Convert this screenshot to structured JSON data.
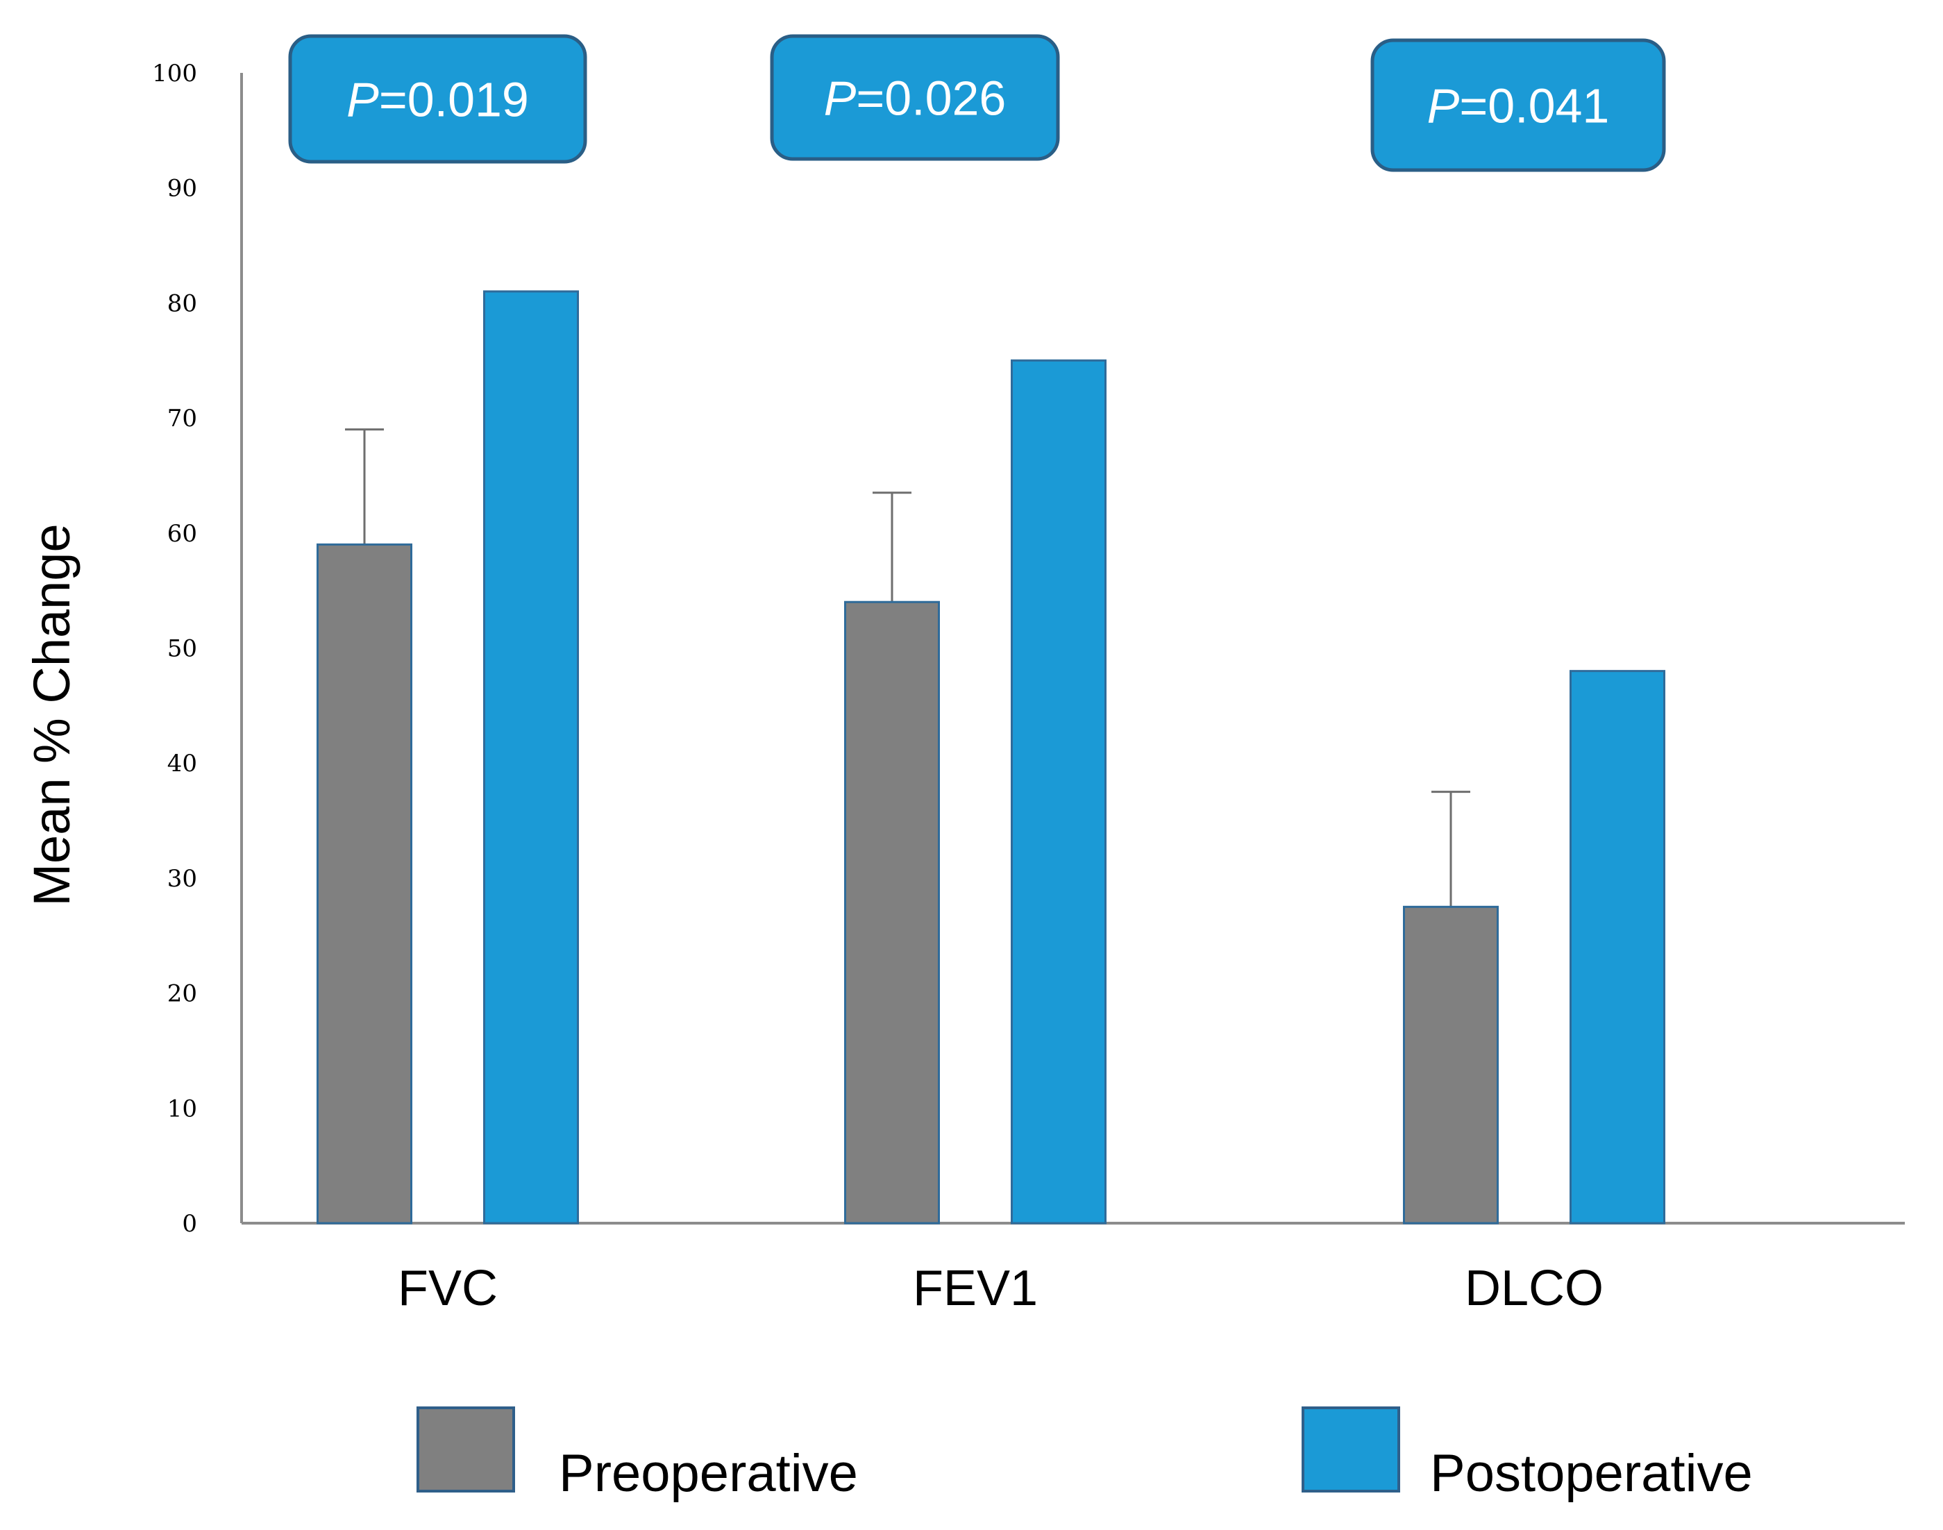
{
  "chart_data": {
    "type": "bar",
    "title": "",
    "xlabel": "",
    "ylabel": "Mean % Change",
    "ylim": [
      0,
      100
    ],
    "yticks": [
      0,
      10,
      20,
      30,
      40,
      50,
      60,
      70,
      80,
      90,
      100
    ],
    "ytick_labels": [
      "0",
      "10",
      "20",
      "30",
      "40",
      "50",
      "60",
      "70",
      "80",
      "90",
      "100"
    ],
    "categories": [
      "FVC",
      "FEV1",
      "DLCO"
    ],
    "series": [
      {
        "name": "Preoperative",
        "color": "#808080",
        "values": [
          59,
          54,
          27.5
        ],
        "error_upper": [
          10,
          9.5,
          10
        ]
      },
      {
        "name": "Postoperative",
        "color": "#1b9ad6",
        "values": [
          81,
          75,
          48
        ]
      }
    ],
    "annotations": [
      {
        "category": "FVC",
        "prefix": "P",
        "text": "=0.019"
      },
      {
        "category": "FEV1",
        "prefix": "P",
        "text": "=0.026"
      },
      {
        "category": "DLCO",
        "prefix": "P",
        "text": "=0.041"
      }
    ],
    "legend": {
      "placement": "bottom",
      "entries": [
        "Preoperative",
        "Postoperative"
      ]
    },
    "grid": false
  }
}
